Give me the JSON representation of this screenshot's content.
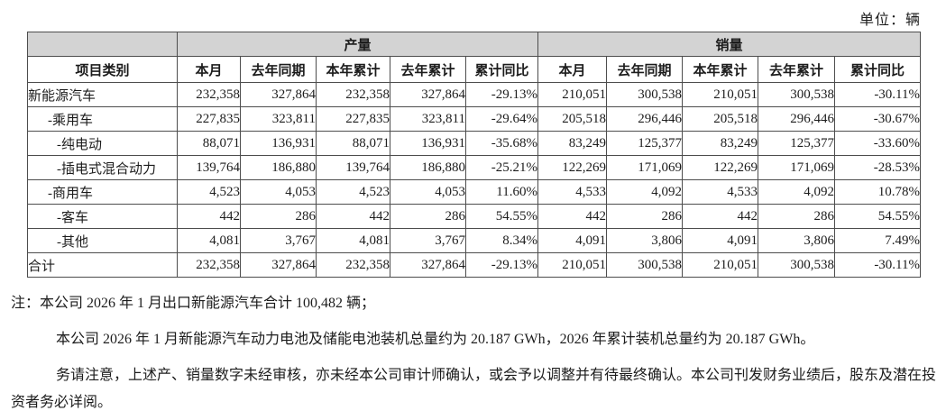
{
  "unit_label": "单位：辆",
  "table": {
    "group_headers": {
      "production": "产量",
      "sales": "销量"
    },
    "col_headers": {
      "category": "项目类别",
      "cols": [
        "本月",
        "去年同期",
        "本年累计",
        "去年累计",
        "累计同比"
      ]
    },
    "rows": [
      {
        "label": "新能源汽车",
        "indent": 0,
        "production": [
          "232,358",
          "327,864",
          "232,358",
          "327,864",
          "-29.13%"
        ],
        "sales": [
          "210,051",
          "300,538",
          "210,051",
          "300,538",
          "-30.11%"
        ]
      },
      {
        "label": "-乘用车",
        "indent": 1,
        "production": [
          "227,835",
          "323,811",
          "227,835",
          "323,811",
          "-29.64%"
        ],
        "sales": [
          "205,518",
          "296,446",
          "205,518",
          "296,446",
          "-30.67%"
        ]
      },
      {
        "label": "-纯电动",
        "indent": 2,
        "production": [
          "88,071",
          "136,931",
          "88,071",
          "136,931",
          "-35.68%"
        ],
        "sales": [
          "83,249",
          "125,377",
          "83,249",
          "125,377",
          "-33.60%"
        ]
      },
      {
        "label": "-插电式混合动力",
        "indent": 2,
        "production": [
          "139,764",
          "186,880",
          "139,764",
          "186,880",
          "-25.21%"
        ],
        "sales": [
          "122,269",
          "171,069",
          "122,269",
          "171,069",
          "-28.53%"
        ]
      },
      {
        "label": "-商用车",
        "indent": 1,
        "production": [
          "4,523",
          "4,053",
          "4,523",
          "4,053",
          "11.60%"
        ],
        "sales": [
          "4,533",
          "4,092",
          "4,533",
          "4,092",
          "10.78%"
        ]
      },
      {
        "label": "-客车",
        "indent": 2,
        "production": [
          "442",
          "286",
          "442",
          "286",
          "54.55%"
        ],
        "sales": [
          "442",
          "286",
          "442",
          "286",
          "54.55%"
        ]
      },
      {
        "label": "-其他",
        "indent": 2,
        "production": [
          "4,081",
          "3,767",
          "4,081",
          "3,767",
          "8.34%"
        ],
        "sales": [
          "4,091",
          "3,806",
          "4,091",
          "3,806",
          "7.49%"
        ]
      },
      {
        "label": "合计",
        "indent": 0,
        "production": [
          "232,358",
          "327,864",
          "232,358",
          "327,864",
          "-29.13%"
        ],
        "sales": [
          "210,051",
          "300,538",
          "210,051",
          "300,538",
          "-30.11%"
        ]
      }
    ]
  },
  "notes": [
    "注：本公司 2026 年 1 月出口新能源汽车合计 100,482 辆；",
    "本公司 2026 年 1 月新能源汽车动力电池及储能电池装机总量约为 20.187 GWh，2026 年累计装机总量约为 20.187 GWh。",
    "务请注意，上述产、销量数字未经审核，亦未经本公司审计师确认，或会予以调整并有待最终确认。本公司刊发财务业绩后，股东及潜在投资者务必详阅。"
  ],
  "colors": {
    "header_bg": "#d3d3d3",
    "border": "#4d4d4d",
    "text": "#1c1c1c",
    "page_bg": "#ffffff"
  }
}
